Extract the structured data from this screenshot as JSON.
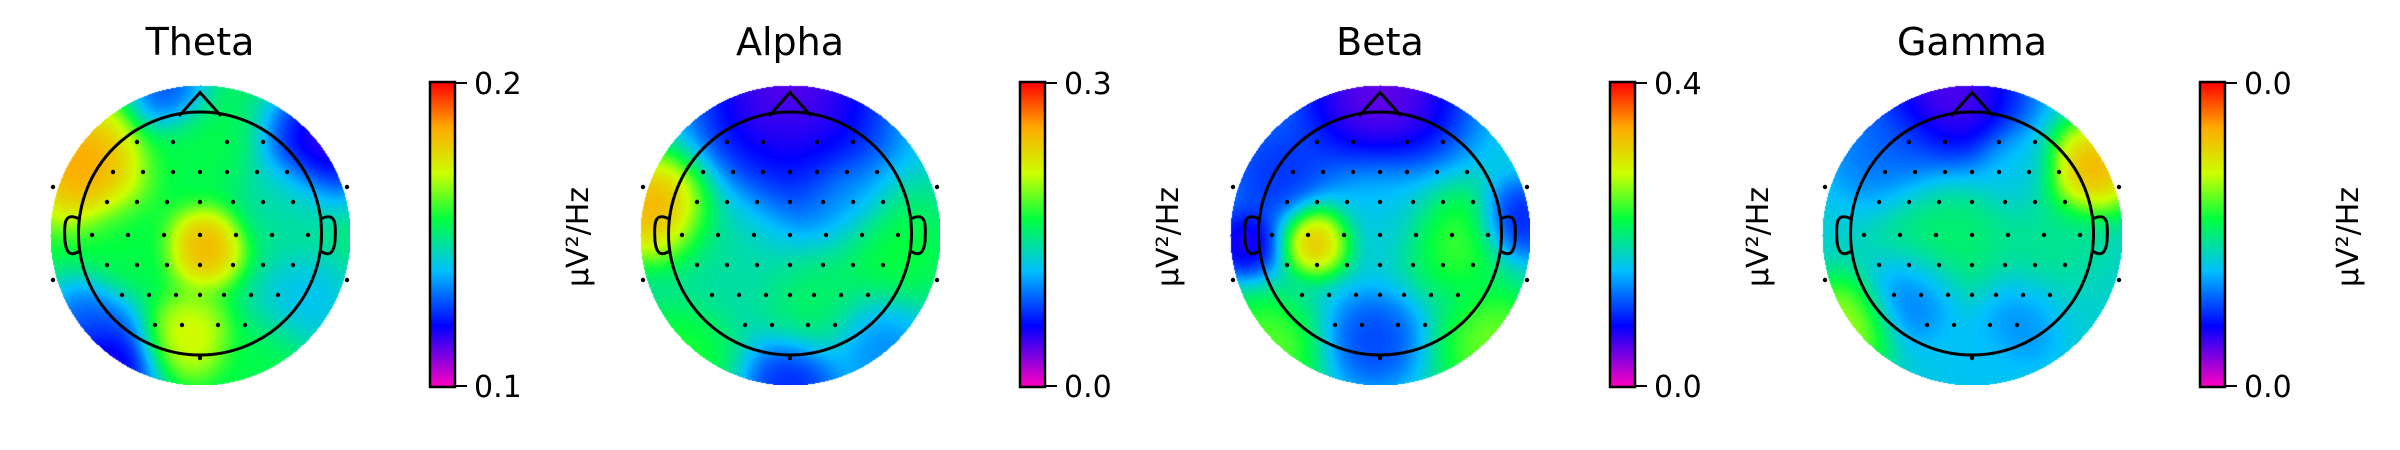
{
  "chart_data": [
    {
      "type": "heatmap",
      "title": "Theta",
      "colorbar": {
        "label": "µV²/Hz",
        "max_label": "0.2",
        "min_label": "0.1",
        "colormap": "gist_rainbow"
      },
      "blobs": [
        {
          "cx": 0.03,
          "cy": 0.08,
          "r": 0.2,
          "v": 0.92
        },
        {
          "cx": -0.8,
          "cy": -0.48,
          "r": 0.32,
          "v": 0.95
        },
        {
          "cx": -0.08,
          "cy": 0.68,
          "r": 0.22,
          "v": 0.78
        },
        {
          "cx": 0.82,
          "cy": -0.62,
          "r": 0.3,
          "v": 0.05
        },
        {
          "cx": -0.65,
          "cy": 0.88,
          "r": 0.28,
          "v": 0.05
        },
        {
          "cx": -0.22,
          "cy": -0.95,
          "r": 0.2,
          "v": 0.2
        },
        {
          "cx": 0.0,
          "cy": -0.6,
          "r": 0.26,
          "v": 0.55
        },
        {
          "cx": 0.55,
          "cy": -0.2,
          "r": 0.25,
          "v": 0.45
        },
        {
          "cx": -0.5,
          "cy": 0.1,
          "r": 0.24,
          "v": 0.55
        },
        {
          "cx": 0.7,
          "cy": 0.45,
          "r": 0.28,
          "v": 0.35
        },
        {
          "cx": -0.75,
          "cy": 0.55,
          "r": 0.22,
          "v": 0.25
        },
        {
          "cx": 0.45,
          "cy": 0.85,
          "r": 0.25,
          "v": 0.55
        }
      ],
      "base_value": 0.52
    },
    {
      "type": "heatmap",
      "title": "Alpha",
      "colorbar": {
        "label": "µV²/Hz",
        "max_label": "0.3",
        "min_label": "0.0",
        "colormap": "gist_rainbow"
      },
      "blobs": [
        {
          "cx": -0.88,
          "cy": -0.18,
          "r": 0.28,
          "v": 0.98
        },
        {
          "cx": 0.0,
          "cy": -0.92,
          "r": 0.45,
          "v": 0.02
        },
        {
          "cx": 0.05,
          "cy": -0.55,
          "r": 0.45,
          "v": 0.2
        },
        {
          "cx": -0.4,
          "cy": 0.1,
          "r": 0.35,
          "v": 0.48
        },
        {
          "cx": 0.7,
          "cy": 0.1,
          "r": 0.35,
          "v": 0.6
        },
        {
          "cx": 0.15,
          "cy": 0.45,
          "r": 0.28,
          "v": 0.55
        },
        {
          "cx": -0.75,
          "cy": 0.8,
          "r": 0.3,
          "v": 0.62
        },
        {
          "cx": 0.0,
          "cy": 0.98,
          "r": 0.24,
          "v": 0.18
        },
        {
          "cx": 0.6,
          "cy": 0.7,
          "r": 0.25,
          "v": 0.3
        },
        {
          "cx": 0.35,
          "cy": -0.25,
          "r": 0.22,
          "v": 0.35
        }
      ],
      "base_value": 0.42
    },
    {
      "type": "heatmap",
      "title": "Beta",
      "colorbar": {
        "label": "µV²/Hz",
        "max_label": "0.4",
        "min_label": "0.0",
        "colormap": "gist_rainbow"
      },
      "blobs": [
        {
          "cx": -0.42,
          "cy": 0.02,
          "r": 0.18,
          "v": 0.97
        },
        {
          "cx": 0.5,
          "cy": 0.02,
          "r": 0.28,
          "v": 0.65
        },
        {
          "cx": 0.0,
          "cy": -0.95,
          "r": 0.45,
          "v": 0.03
        },
        {
          "cx": -0.7,
          "cy": -0.4,
          "r": 0.3,
          "v": 0.2
        },
        {
          "cx": -0.78,
          "cy": 0.78,
          "r": 0.3,
          "v": 0.68
        },
        {
          "cx": 0.78,
          "cy": 0.75,
          "r": 0.3,
          "v": 0.7
        },
        {
          "cx": -0.05,
          "cy": 0.7,
          "r": 0.25,
          "v": 0.22
        },
        {
          "cx": -0.9,
          "cy": 0.05,
          "r": 0.18,
          "v": 0.1
        },
        {
          "cx": 0.9,
          "cy": -0.1,
          "r": 0.2,
          "v": 0.15
        },
        {
          "cx": 0.0,
          "cy": -0.15,
          "r": 0.3,
          "v": 0.4
        }
      ],
      "base_value": 0.42
    },
    {
      "type": "heatmap",
      "title": "Gamma",
      "colorbar": {
        "label": "µV²/Hz",
        "max_label": "0.0",
        "min_label": "0.0",
        "colormap": "gist_rainbow"
      },
      "blobs": [
        {
          "cx": 0.8,
          "cy": -0.45,
          "r": 0.24,
          "v": 0.95
        },
        {
          "cx": -0.15,
          "cy": -0.95,
          "r": 0.4,
          "v": 0.05
        },
        {
          "cx": -0.6,
          "cy": -0.55,
          "r": 0.3,
          "v": 0.28
        },
        {
          "cx": -0.2,
          "cy": 0.05,
          "r": 0.35,
          "v": 0.55
        },
        {
          "cx": 0.55,
          "cy": 0.15,
          "r": 0.3,
          "v": 0.5
        },
        {
          "cx": -0.85,
          "cy": 0.6,
          "r": 0.25,
          "v": 0.75
        },
        {
          "cx": -0.4,
          "cy": 0.4,
          "r": 0.25,
          "v": 0.25
        },
        {
          "cx": 0.35,
          "cy": 0.55,
          "r": 0.25,
          "v": 0.3
        },
        {
          "cx": 0.8,
          "cy": 0.5,
          "r": 0.28,
          "v": 0.42
        },
        {
          "cx": 0.0,
          "cy": 0.85,
          "r": 0.25,
          "v": 0.38
        },
        {
          "cx": 0.3,
          "cy": -0.45,
          "r": 0.2,
          "v": 0.4
        }
      ],
      "base_value": 0.42
    }
  ]
}
